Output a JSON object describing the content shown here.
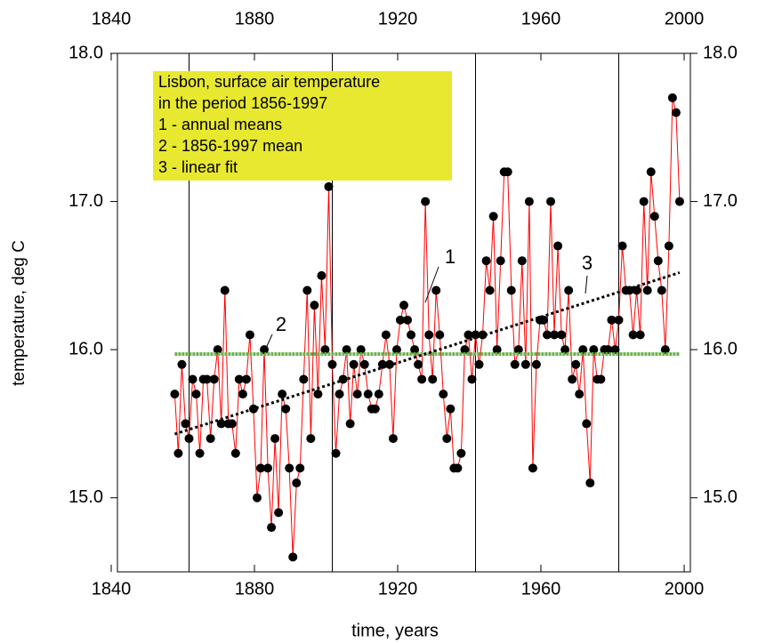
{
  "chart_data": {
    "type": "line",
    "xlabel": "time, years",
    "ylabel": "temperature, deg C",
    "legend_box": [
      "Lisbon, surface air temperature",
      "in the period 1856-1997",
      "1 - annual means",
      "2 - 1856-1997 mean",
      "3 - linear fit"
    ],
    "annotations": [
      "1",
      "2",
      "3"
    ],
    "xlim": [
      1840,
      2000
    ],
    "xticks": [
      1840,
      1880,
      1920,
      1960,
      2000
    ],
    "xgrid": [
      1860,
      1900,
      1940,
      1980
    ],
    "ylim": [
      14.5,
      18.0
    ],
    "yticks": [
      {
        "value": 15,
        "label": "15.0"
      },
      {
        "value": 16,
        "label": "16.0"
      },
      {
        "value": 17,
        "label": "17.0"
      },
      {
        "value": 18,
        "label": "18.0"
      }
    ],
    "series": [
      {
        "color": "#ff0000",
        "marker_color": "#000000",
        "x": [
          1856,
          1857,
          1858,
          1859,
          1860,
          1861,
          1862,
          1863,
          1864,
          1865,
          1866,
          1867,
          1868,
          1869,
          1870,
          1871,
          1872,
          1873,
          1874,
          1875,
          1876,
          1877,
          1878,
          1879,
          1880,
          1881,
          1882,
          1883,
          1884,
          1885,
          1886,
          1887,
          1888,
          1889,
          1890,
          1891,
          1892,
          1893,
          1894,
          1895,
          1896,
          1897,
          1898,
          1899,
          1900,
          1901,
          1902,
          1903,
          1904,
          1905,
          1906,
          1907,
          1908,
          1909,
          1910,
          1911,
          1912,
          1913,
          1914,
          1915,
          1916,
          1917,
          1918,
          1919,
          1920,
          1921,
          1922,
          1923,
          1924,
          1925,
          1926,
          1927,
          1928,
          1929,
          1930,
          1931,
          1932,
          1933,
          1934,
          1935,
          1936,
          1937,
          1938,
          1939,
          1940,
          1941,
          1942,
          1943,
          1944,
          1945,
          1946,
          1947,
          1948,
          1949,
          1950,
          1951,
          1952,
          1953,
          1954,
          1955,
          1956,
          1957,
          1958,
          1959,
          1960,
          1961,
          1962,
          1963,
          1964,
          1965,
          1966,
          1967,
          1968,
          1969,
          1970,
          1971,
          1972,
          1973,
          1974,
          1975,
          1976,
          1977,
          1978,
          1979,
          1980,
          1981,
          1982,
          1983,
          1984,
          1985,
          1986,
          1987,
          1988,
          1989,
          1990,
          1991,
          1992,
          1993,
          1994,
          1995,
          1996,
          1997
        ],
        "values": [
          15.7,
          15.3,
          15.9,
          15.5,
          15.4,
          15.8,
          15.7,
          15.3,
          15.8,
          15.8,
          15.4,
          15.8,
          16.0,
          15.5,
          16.4,
          15.5,
          15.5,
          15.3,
          15.8,
          15.7,
          15.8,
          16.1,
          15.6,
          15.0,
          15.2,
          16.0,
          15.2,
          14.8,
          15.4,
          14.9,
          15.7,
          15.6,
          15.2,
          14.6,
          15.1,
          15.2,
          15.8,
          16.4,
          15.4,
          16.3,
          15.7,
          16.5,
          16.0,
          17.1,
          15.9,
          15.3,
          15.7,
          15.8,
          16.0,
          15.5,
          15.9,
          15.7,
          16.0,
          15.9,
          15.7,
          15.6,
          15.6,
          15.7,
          15.9,
          16.1,
          15.9,
          15.4,
          16.0,
          16.2,
          16.3,
          16.2,
          16.1,
          16.0,
          15.9,
          15.8,
          17.0,
          16.1,
          15.8,
          16.4,
          16.1,
          15.7,
          15.4,
          15.6,
          15.2,
          15.2,
          15.3,
          16.0,
          16.1,
          15.8,
          16.1,
          15.9,
          16.1,
          16.6,
          16.4,
          16.9,
          16.0,
          16.6,
          17.2,
          17.2,
          16.4,
          15.9,
          16.0,
          16.6,
          15.9,
          17.0,
          15.2,
          15.9,
          16.2,
          16.2,
          16.1,
          17.0,
          16.1,
          16.7,
          16.1,
          16.0,
          16.4,
          15.8,
          15.9,
          15.7,
          16.0,
          15.5,
          15.1,
          16.0,
          15.8,
          15.8,
          16.0,
          16.0,
          16.2,
          16.0,
          16.2,
          16.7,
          16.4,
          16.4,
          16.1,
          16.4,
          16.1,
          17.0,
          16.4,
          17.2,
          16.9,
          16.6,
          16.4,
          16.0,
          16.7,
          17.7,
          17.6,
          17.0
        ]
      },
      {
        "color": "#6ab04c",
        "x": [
          1856,
          1997
        ],
        "values": [
          15.97,
          15.97
        ]
      },
      {
        "color": "#000000",
        "dashed": true,
        "x": [
          1856,
          1997
        ],
        "values": [
          15.43,
          16.52
        ]
      }
    ]
  }
}
